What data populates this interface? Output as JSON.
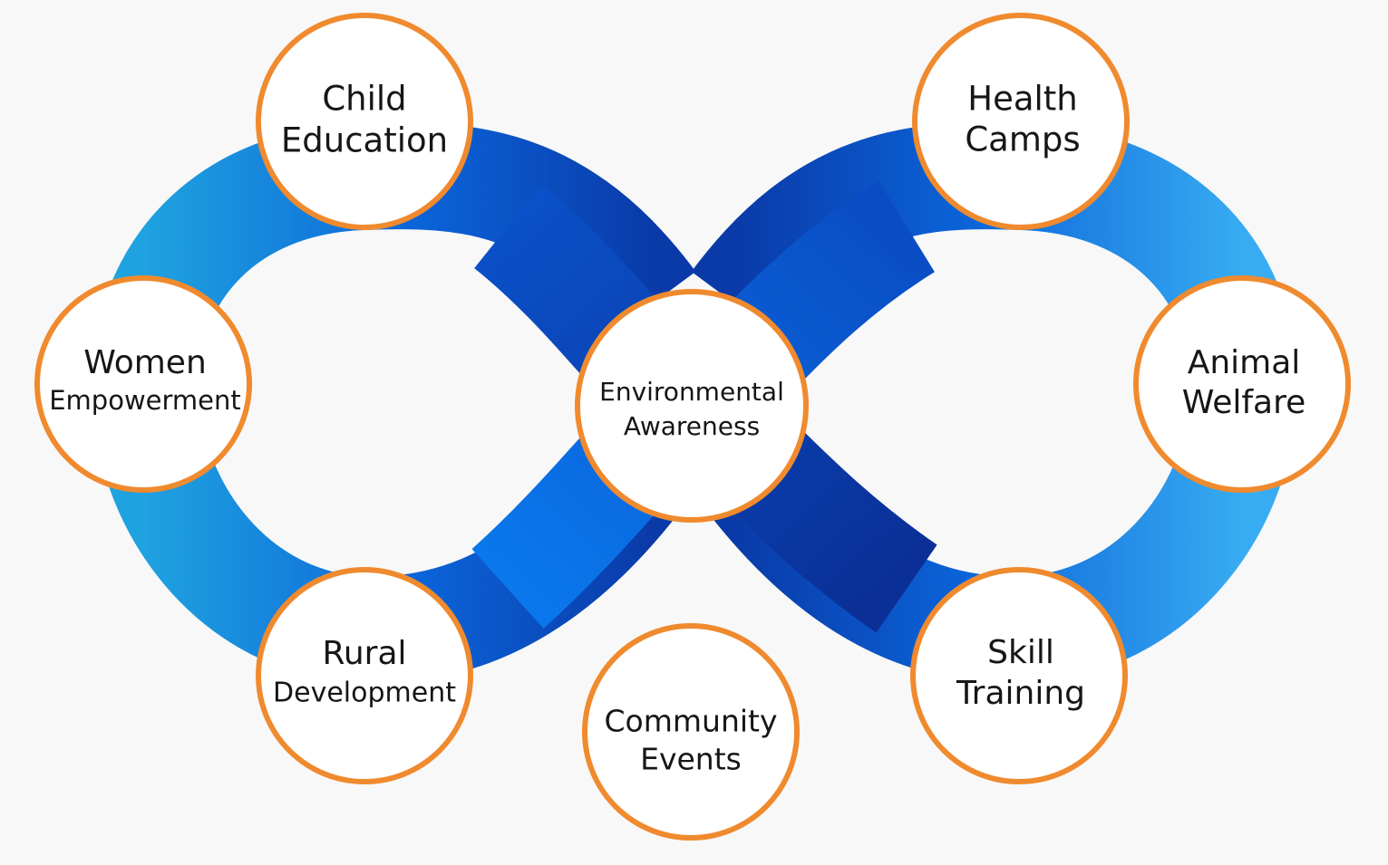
{
  "colors": {
    "background": "#f8f8f8",
    "ring_light": "#2aa4e8",
    "ring_mid": "#0a6ee6",
    "ring_dark": "#0a2f96",
    "node_border": "#f08a2e",
    "node_fill": "#ffffff",
    "text": "#161616"
  },
  "nodes": {
    "child_education": {
      "line1": "Child",
      "line2": "Education"
    },
    "women_empowerment": {
      "line1": "Women",
      "line2": "Empowerment"
    },
    "rural_development": {
      "line1": "Rural",
      "line2": "Development"
    },
    "environmental_awareness": {
      "line1": "Environmental",
      "line2": "Awareness"
    },
    "health_camps": {
      "line1": "Health",
      "line2": "Camps"
    },
    "animal_welfare": {
      "line1": "Animal",
      "line2": "Welfare"
    },
    "skill_training": {
      "line1": "Skill",
      "line2": "Training"
    },
    "community_events": {
      "line1": "Community",
      "line2": "Events"
    }
  }
}
